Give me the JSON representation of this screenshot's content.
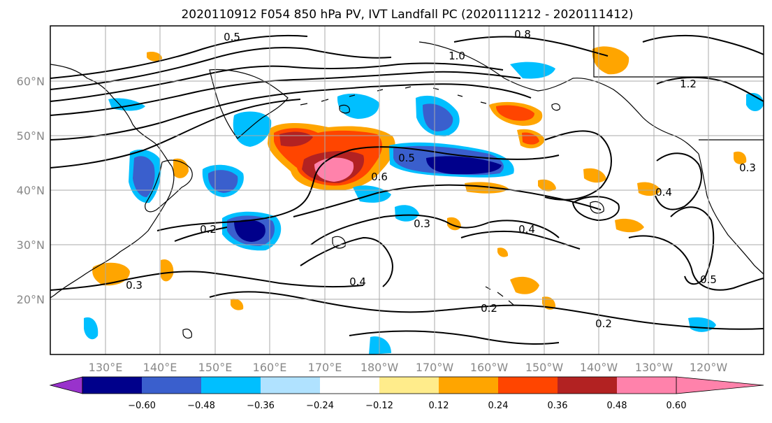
{
  "title": "2020110912 F054 850 hPa PV, IVT Landfall PC (2020111212 - 2020111412)",
  "lat_ticks": [
    "60°N",
    "50°N",
    "40°N",
    "30°N",
    "20°N"
  ],
  "lon_ticks": [
    "130°E",
    "140°E",
    "150°E",
    "160°E",
    "170°E",
    "180°W",
    "170°W",
    "160°W",
    "150°W",
    "140°W",
    "130°W",
    "120°W"
  ],
  "colorbar": {
    "tick_labels": [
      "−0.60",
      "−0.48",
      "−0.36",
      "−0.24",
      "−0.12",
      "0.12",
      "0.24",
      "0.36",
      "0.48",
      "0.60"
    ],
    "colors": [
      "#9932cc",
      "#00008b",
      "#3a5fcd",
      "#00bfff",
      "#b0e2ff",
      "#ffffff",
      "#ffec8b",
      "#ffa500",
      "#ff4500",
      "#b22222",
      "#ff82ab"
    ]
  },
  "contour_labels": [
    "0.5",
    "0.6",
    "0.5",
    "0.3",
    "0.2",
    "0.3",
    "0.4",
    "0.4",
    "0.2",
    "0.2",
    "0.5",
    "0.3",
    "0.8",
    "1.0",
    "1.2",
    "0.4"
  ]
}
